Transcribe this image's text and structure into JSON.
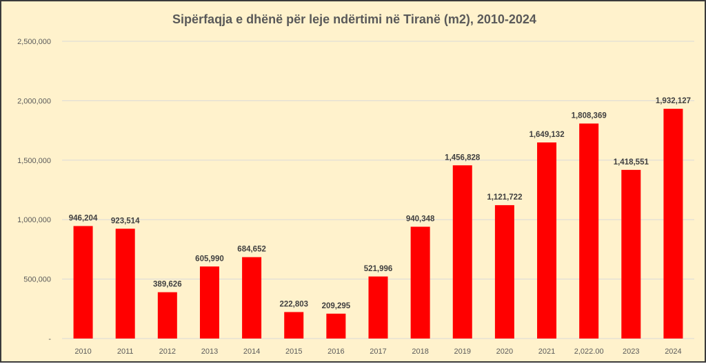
{
  "chart_data": {
    "type": "bar",
    "title": "Sipërfaqja e dhënë për leje ndërtimi në Tiranë (m2), 2010-2024",
    "xlabel": "",
    "ylabel": "",
    "categories": [
      "2010",
      "2011",
      "2012",
      "2013",
      "2014",
      "2015",
      "2016",
      "2017",
      "2018",
      "2019",
      "2020",
      "2021",
      "2,022.00",
      "2023",
      "2024"
    ],
    "values": [
      946204,
      923514,
      389626,
      605990,
      684652,
      222803,
      209295,
      521996,
      940348,
      1456828,
      1121722,
      1649132,
      1808369,
      1418551,
      1932127
    ],
    "value_labels": [
      "946,204",
      "923,514",
      "389,626",
      "605,990",
      "684,652",
      "222,803",
      "209,295",
      "521,996",
      "940,348",
      "1,456,828",
      "1,121,722",
      "1,649,132",
      "1,808,369",
      "1,418,551",
      "1,932,127"
    ],
    "ylim": [
      0,
      2500000
    ],
    "yticks": [
      0,
      500000,
      1000000,
      1500000,
      2000000,
      2500000
    ],
    "ytick_labels": [
      "-",
      "500,000",
      "1,000,000",
      "1,500,000",
      "2,000,000",
      "2,500,000"
    ],
    "grid": true,
    "legend": "none",
    "colors": {
      "bar": "#FF0000",
      "background": "#FFF2CC",
      "grid": "#D9D9D9"
    }
  }
}
